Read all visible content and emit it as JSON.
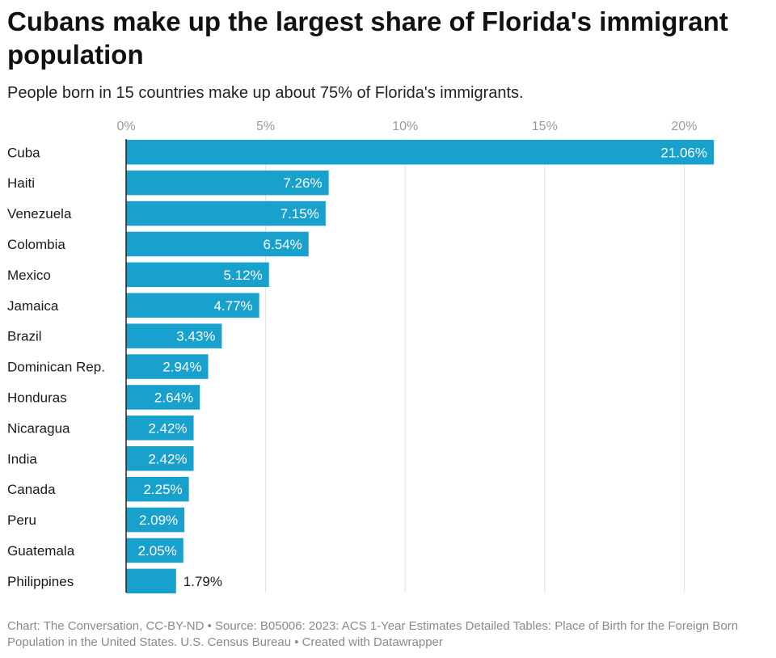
{
  "title": "Cubans make up the largest share of Florida's immigrant population",
  "subtitle": "People born in 15 countries make up about 75% of Florida's immigrants.",
  "footer": "Chart: The Conversation, CC-BY-ND • Source: B05006: 2023: ACS 1-Year Estimates Detailed Tables: Place of Birth for the Foreign Born Population in the United States. U.S. Census Bureau • Created with Datawrapper",
  "colors": {
    "bar": "#18a1cd",
    "grid": "#e2e2e2",
    "axis": "#222222",
    "tick_text": "#9a9a9a",
    "label_text": "#1a1a1a"
  },
  "chart_data": {
    "type": "bar",
    "orientation": "horizontal",
    "categories": [
      "Cuba",
      "Haiti",
      "Venezuela",
      "Colombia",
      "Mexico",
      "Jamaica",
      "Brazil",
      "Dominican Rep.",
      "Honduras",
      "Nicaragua",
      "India",
      "Canada",
      "Peru",
      "Guatemala",
      "Philippines"
    ],
    "values": [
      21.06,
      7.26,
      7.15,
      6.54,
      5.12,
      4.77,
      3.43,
      2.94,
      2.64,
      2.42,
      2.42,
      2.25,
      2.09,
      2.05,
      1.79
    ],
    "value_labels": [
      "21.06%",
      "7.26%",
      "7.15%",
      "6.54%",
      "5.12%",
      "4.77%",
      "3.43%",
      "2.94%",
      "2.64%",
      "2.42%",
      "2.42%",
      "2.25%",
      "2.09%",
      "2.05%",
      "1.79%"
    ],
    "xticks": [
      0,
      5,
      10,
      15,
      20
    ],
    "xtick_labels": [
      "0%",
      "5%",
      "10%",
      "15%",
      "20%"
    ],
    "xlim": [
      0,
      21.06
    ],
    "grid": true,
    "axis_position": "top"
  }
}
